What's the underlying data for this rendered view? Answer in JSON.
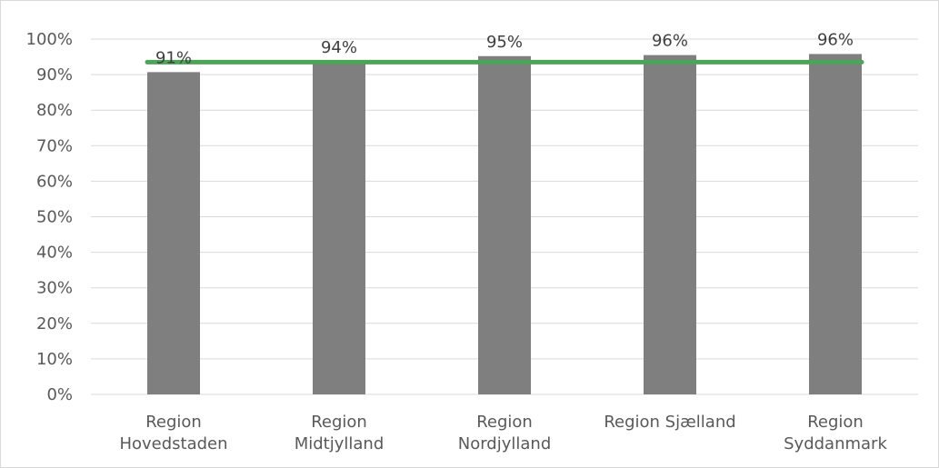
{
  "colors": {
    "bar": "#7f7f7f",
    "average_line": "#4ea35a",
    "grid": "#d9d9d9",
    "text": "#595959"
  },
  "chart_data": {
    "type": "bar",
    "title": "",
    "xlabel": "",
    "ylabel": "",
    "ylim": [
      0,
      100
    ],
    "y_ticks": [
      "0%",
      "10%",
      "20%",
      "30%",
      "40%",
      "50%",
      "60%",
      "70%",
      "80%",
      "90%",
      "100%"
    ],
    "y_tick_values": [
      0,
      10,
      20,
      30,
      40,
      50,
      60,
      70,
      80,
      90,
      100
    ],
    "grid": true,
    "legend": "none",
    "categories": [
      [
        "Region",
        "Hovedstaden"
      ],
      [
        "Region",
        "Midtjylland"
      ],
      [
        "Region",
        "Nordjylland"
      ],
      [
        "Region Sjælland"
      ],
      [
        "Region",
        "Syddanmark"
      ]
    ],
    "values": [
      90.7,
      93.6,
      95.2,
      95.5,
      95.8
    ],
    "data_labels": [
      "91%",
      "94%",
      "95%",
      "96%",
      "96%"
    ],
    "average_line": {
      "value": 93.5
    }
  }
}
